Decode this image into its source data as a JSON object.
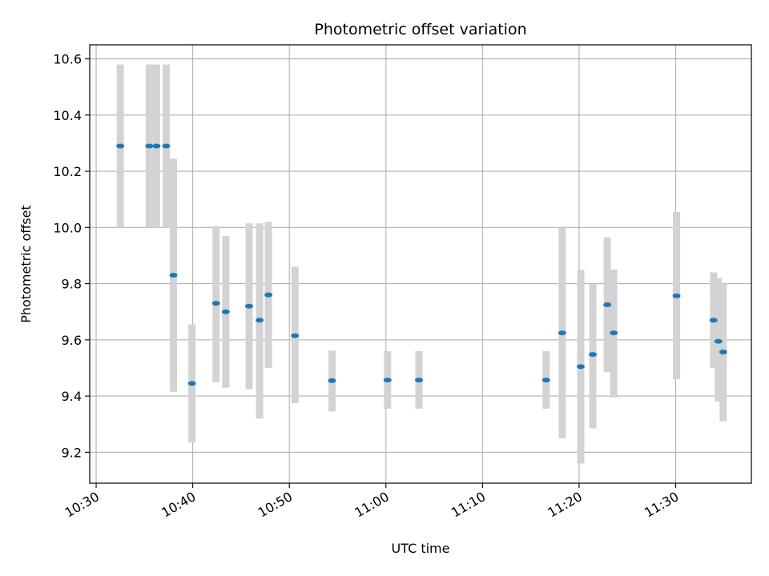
{
  "chart_data": {
    "type": "scatter",
    "title": "Photometric offset variation",
    "xlabel": "UTC time",
    "ylabel": "Photometric offset",
    "x_tick_labels": [
      "10:30",
      "10:40",
      "10:50",
      "11:00",
      "11:10",
      "11:20",
      "11:30"
    ],
    "y_tick_labels": [
      "9.2",
      "9.4",
      "9.6",
      "9.8",
      "10.0",
      "10.2",
      "10.4",
      "10.6"
    ],
    "xlim": [
      "10:29:20",
      "11:37:50"
    ],
    "ylim": [
      9.09,
      10.65
    ],
    "grid": true,
    "colors": {
      "point": "#1f77b4",
      "errorbar": "#d3d3d3",
      "grid": "#b0b0b0"
    },
    "series": [
      {
        "x": [
          "10:32:30",
          "10:35:30",
          "10:36:15",
          "10:37:15",
          "10:38:00",
          "10:39:55",
          "10:42:25",
          "10:43:25",
          "10:45:50",
          "10:46:55",
          "10:47:50",
          "10:50:35",
          "10:54:25",
          "11:00:10",
          "11:03:25",
          "11:16:35",
          "11:18:15",
          "11:20:10",
          "11:21:25",
          "11:22:55",
          "11:23:35",
          "11:30:05",
          "11:33:55",
          "11:34:25",
          "11:34:55"
        ],
        "y": [
          10.29,
          10.29,
          10.29,
          10.29,
          9.83,
          9.445,
          9.73,
          9.7,
          9.72,
          9.67,
          9.76,
          9.615,
          9.455,
          9.457,
          9.457,
          9.457,
          9.625,
          9.505,
          9.548,
          9.725,
          9.625,
          9.757,
          9.67,
          9.595,
          9.557
        ],
        "err_low": [
          10.0,
          10.0,
          10.0,
          10.0,
          9.415,
          9.235,
          9.45,
          9.43,
          9.425,
          9.32,
          9.5,
          9.375,
          9.345,
          9.355,
          9.355,
          9.355,
          9.25,
          9.16,
          9.285,
          9.485,
          9.395,
          9.46,
          9.5,
          9.38,
          9.31
        ],
        "err_high": [
          10.58,
          10.58,
          10.58,
          10.58,
          10.245,
          9.655,
          10.005,
          9.97,
          10.015,
          10.015,
          10.02,
          9.86,
          9.562,
          9.56,
          9.56,
          9.56,
          10.0,
          9.85,
          9.8,
          9.965,
          9.85,
          10.055,
          9.84,
          9.82,
          9.8
        ]
      }
    ]
  }
}
